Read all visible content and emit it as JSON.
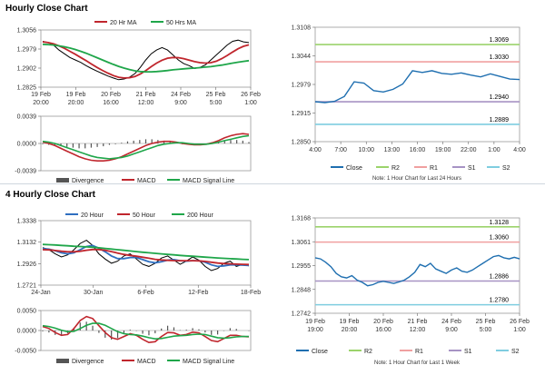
{
  "sections": [
    {
      "title": "Hourly Close Chart"
    },
    {
      "title": "4 Hourly Close Chart"
    }
  ],
  "colors": {
    "close": "#000000",
    "ma_red": "#c0262d",
    "ma_green": "#1fa64a",
    "ma_blue": "#2f6fc0",
    "macd_red": "#c0262d",
    "macd_green": "#1fa64a",
    "hist": "#555555",
    "pivot_close": "#1f6fb0",
    "r2": "#9bd36b",
    "r1": "#f0a0a0",
    "s1": "#a793c4",
    "s2": "#7fcde0"
  },
  "chart_data": [
    {
      "id": "hourly-price",
      "type": "line",
      "legend": [
        "20 Hr MA",
        "50 Hrs MA"
      ],
      "x_ticks": [
        [
          "19 Feb",
          "20:00"
        ],
        [
          "19 Feb",
          "20:00"
        ],
        [
          "20 Feb",
          "16:00"
        ],
        [
          "21 Feb",
          "12:00"
        ],
        [
          "24 Feb",
          "9:00"
        ],
        [
          "25 Feb",
          "5:00"
        ],
        [
          "26 Feb",
          "1:00"
        ]
      ],
      "y_ticks": [
        "1.3056",
        "1.2979",
        "1.2902",
        "1.2825"
      ],
      "ylim": [
        1.2825,
        1.3056
      ],
      "series": [
        {
          "role": "close",
          "values": [
            1.301,
            1.3005,
            1.2995,
            1.2975,
            1.296,
            1.2945,
            1.2935,
            1.2925,
            1.2912,
            1.29,
            1.289,
            1.288,
            1.287,
            1.2862,
            1.2855,
            1.2858,
            1.2865,
            1.288,
            1.2905,
            1.2935,
            1.296,
            1.2975,
            1.2985,
            1.2975,
            1.2955,
            1.2935,
            1.292,
            1.2912,
            1.29,
            1.2905,
            1.2915,
            1.2935,
            1.2955,
            1.2975,
            1.2995,
            1.301,
            1.3015,
            1.3008,
            1.3005
          ]
        },
        {
          "name": "20 Hr MA",
          "role": "ma1",
          "values": [
            1.3008,
            1.3005,
            1.3,
            1.2992,
            1.2982,
            1.297,
            1.2958,
            1.2945,
            1.2932,
            1.2918,
            1.2905,
            1.2893,
            1.2882,
            1.2872,
            1.2865,
            1.2862,
            1.2863,
            1.2868,
            1.2878,
            1.2892,
            1.2908,
            1.2922,
            1.2934,
            1.2942,
            1.2945,
            1.2944,
            1.294,
            1.2934,
            1.2928,
            1.2924,
            1.2922,
            1.2924,
            1.293,
            1.294,
            1.2953,
            1.2967,
            1.298,
            1.299,
            1.2996
          ]
        },
        {
          "name": "50 Hrs MA",
          "role": "ma2",
          "values": [
            1.2998,
            1.2997,
            1.2995,
            1.2992,
            1.2988,
            1.2983,
            1.2977,
            1.297,
            1.2962,
            1.2953,
            1.2944,
            1.2935,
            1.2926,
            1.2917,
            1.2909,
            1.2902,
            1.2896,
            1.2891,
            1.2888,
            1.2887,
            1.2887,
            1.2888,
            1.289,
            1.2892,
            1.2895,
            1.2897,
            1.2899,
            1.2901,
            1.2902,
            1.2904,
            1.2906,
            1.2908,
            1.2911,
            1.2914,
            1.2918,
            1.2922,
            1.2926,
            1.2929,
            1.2932
          ]
        }
      ]
    },
    {
      "id": "hourly-macd",
      "type": "line",
      "legend": [
        "Divergence",
        "MACD",
        "MACD Signal Line"
      ],
      "y_ticks": [
        "0.0039",
        "0.0000",
        "-0.0039"
      ],
      "ylim": [
        -0.0039,
        0.0039
      ],
      "series": [
        {
          "name": "MACD",
          "role": "macd",
          "values": [
            0.0002,
            0.0,
            -0.0003,
            -0.0007,
            -0.0011,
            -0.0015,
            -0.0019,
            -0.0022,
            -0.0024,
            -0.0025,
            -0.0025,
            -0.0024,
            -0.0022,
            -0.0019,
            -0.0015,
            -0.0011,
            -0.0007,
            -0.0003,
            0.0,
            0.0002,
            0.0003,
            0.0003,
            0.0002,
            0.0,
            -0.0001,
            -0.0002,
            -0.0002,
            -0.0001,
            0.0001,
            0.0004,
            0.0008,
            0.0011,
            0.0013,
            0.0014,
            0.0013
          ]
        },
        {
          "name": "MACD Signal Line",
          "role": "signal",
          "values": [
            0.0003,
            0.0002,
            0.0,
            -0.0003,
            -0.0006,
            -0.0009,
            -0.0012,
            -0.0015,
            -0.0018,
            -0.002,
            -0.0021,
            -0.0022,
            -0.0021,
            -0.002,
            -0.0018,
            -0.0015,
            -0.0012,
            -0.0009,
            -0.0006,
            -0.0003,
            -0.0001,
            0.0,
            0.0001,
            0.0001,
            0.0,
            -0.0001,
            -0.0001,
            -0.0001,
            0.0,
            0.0002,
            0.0004,
            0.0006,
            0.0008,
            0.001,
            0.0011
          ]
        },
        {
          "name": "Divergence",
          "role": "hist",
          "values": [
            -0.0001,
            -0.0002,
            -0.0003,
            -0.0004,
            -0.0005,
            -0.0006,
            -0.0007,
            -0.0007,
            -0.0006,
            -0.0005,
            -0.0004,
            -0.0002,
            -0.0001,
            0.0001,
            0.0003,
            0.0004,
            0.0005,
            0.0006,
            0.0006,
            0.0005,
            0.0004,
            0.0003,
            0.0001,
            -0.0001,
            -0.0001,
            -0.0001,
            -0.0001,
            0.0,
            0.0001,
            0.0002,
            0.0004,
            0.0005,
            0.0005,
            0.0004,
            0.0002
          ]
        }
      ]
    },
    {
      "id": "hourly-pivot",
      "type": "line",
      "legend": [
        "Close",
        "R2",
        "R1",
        "S1",
        "S2"
      ],
      "x_ticks": [
        "4:00",
        "7:00",
        "10:00",
        "13:00",
        "16:00",
        "19:00",
        "22:00",
        "1:00",
        "4:00"
      ],
      "y_ticks": [
        "1.3108",
        "1.3044",
        "1.2979",
        "1.2915",
        "1.2850"
      ],
      "ylim": [
        1.285,
        1.3108
      ],
      "levels": {
        "R2": 1.3069,
        "R1": 1.303,
        "S1": 1.294,
        "S2": 1.2889
      },
      "level_labels": {
        "R2": "1.3069",
        "R1": "1.3030",
        "S1": "1.2940",
        "S2": "1.2889"
      },
      "note": "Note: 1 Hour Chart for Last 24 Hours",
      "series": [
        {
          "name": "Close",
          "role": "close",
          "values": [
            1.294,
            1.2938,
            1.2941,
            1.2952,
            1.2985,
            1.2982,
            1.2965,
            1.2962,
            1.2968,
            1.298,
            1.301,
            1.3006,
            1.301,
            1.3004,
            1.3002,
            1.3005,
            1.3,
            1.2996,
            1.3003,
            1.2997,
            1.2991,
            1.299
          ]
        }
      ]
    },
    {
      "id": "4hourly-price",
      "type": "line",
      "legend": [
        "20 Hour",
        "50 Hour",
        "200 Hour"
      ],
      "x_ticks": [
        "24-Jan",
        "30-Jan",
        "6-Feb",
        "12-Feb",
        "18-Feb"
      ],
      "y_ticks": [
        "1.3338",
        "1.3132",
        "1.2926",
        "1.2721"
      ],
      "ylim": [
        1.2721,
        1.3338
      ],
      "series": [
        {
          "role": "close",
          "values": [
            1.308,
            1.306,
            1.302,
            1.299,
            1.301,
            1.306,
            1.312,
            1.315,
            1.31,
            1.302,
            1.297,
            1.293,
            1.295,
            1.3,
            1.302,
            1.297,
            1.292,
            1.29,
            1.293,
            1.298,
            1.3,
            1.296,
            1.292,
            1.295,
            1.299,
            1.296,
            1.29,
            1.286,
            1.288,
            1.293,
            1.295,
            1.29,
            1.292,
            1.2905
          ]
        },
        {
          "name": "20 Hour",
          "role": "ma1",
          "values": [
            1.307,
            1.3065,
            1.305,
            1.303,
            1.302,
            1.303,
            1.306,
            1.309,
            1.31,
            1.3075,
            1.304,
            1.3,
            1.2975,
            1.2975,
            1.2985,
            1.2985,
            1.2965,
            1.2945,
            1.2935,
            1.2945,
            1.296,
            1.2965,
            1.2955,
            1.295,
            1.2955,
            1.2955,
            1.294,
            1.2915,
            1.29,
            1.2905,
            1.2915,
            1.2915,
            1.2912,
            1.291
          ]
        },
        {
          "name": "50 Hour",
          "role": "ma2",
          "values": [
            1.306,
            1.3058,
            1.3052,
            1.3045,
            1.304,
            1.304,
            1.3045,
            1.3055,
            1.3062,
            1.3062,
            1.3055,
            1.3042,
            1.3028,
            1.3015,
            1.3005,
            1.2997,
            1.2988,
            1.2978,
            1.2968,
            1.2962,
            1.2958,
            1.2956,
            1.2955,
            1.2955,
            1.2955,
            1.2953,
            1.2948,
            1.294,
            1.2932,
            1.2927,
            1.2924,
            1.2922,
            1.292,
            1.2918
          ]
        },
        {
          "name": "200 Hour",
          "role": "ma3",
          "values": [
            1.311,
            1.3108,
            1.3105,
            1.3101,
            1.3097,
            1.3093,
            1.309,
            1.3087,
            1.3083,
            1.3078,
            1.3072,
            1.3066,
            1.306,
            1.3054,
            1.3048,
            1.3042,
            1.3036,
            1.303,
            1.3025,
            1.302,
            1.3015,
            1.301,
            1.3005,
            1.3001,
            1.2997,
            1.2993,
            1.2989,
            1.2985,
            1.2981,
            1.2977,
            1.2974,
            1.2971,
            1.2968,
            1.2965
          ]
        }
      ]
    },
    {
      "id": "4hourly-macd",
      "type": "line",
      "legend": [
        "Divergence",
        "MACD",
        "MACD Signal Line"
      ],
      "y_ticks": [
        "0.0050",
        "0.0000",
        "-0.0050"
      ],
      "ylim": [
        -0.005,
        0.005
      ],
      "series": [
        {
          "name": "MACD",
          "role": "macd",
          "values": [
            0.001,
            0.0005,
            -0.0005,
            -0.0012,
            -0.001,
            0.0005,
            0.0025,
            0.0035,
            0.003,
            0.0012,
            -0.0005,
            -0.0018,
            -0.0022,
            -0.0015,
            -0.0008,
            -0.0012,
            -0.0022,
            -0.003,
            -0.0028,
            -0.0015,
            -0.0005,
            -0.0006,
            -0.0012,
            -0.001,
            -0.0004,
            -0.0006,
            -0.0015,
            -0.0025,
            -0.0028,
            -0.002,
            -0.0012,
            -0.0012,
            -0.0015,
            -0.0016
          ]
        },
        {
          "name": "MACD Signal Line",
          "role": "signal",
          "values": [
            0.0012,
            0.001,
            0.0006,
            0.0001,
            -0.0003,
            -0.0002,
            0.0005,
            0.0013,
            0.0018,
            0.0018,
            0.0013,
            0.0005,
            -0.0003,
            -0.0008,
            -0.001,
            -0.0011,
            -0.0014,
            -0.0018,
            -0.0021,
            -0.002,
            -0.0017,
            -0.0014,
            -0.0013,
            -0.0012,
            -0.001,
            -0.0009,
            -0.001,
            -0.0014,
            -0.0018,
            -0.0019,
            -0.0018,
            -0.0016,
            -0.0015,
            -0.0015
          ]
        },
        {
          "name": "Divergence",
          "role": "hist",
          "values": [
            -0.0002,
            -0.0005,
            -0.0011,
            -0.0013,
            -0.0007,
            0.0007,
            0.002,
            0.0022,
            0.0012,
            -0.0006,
            -0.0018,
            -0.0023,
            -0.0019,
            -0.0007,
            0.0002,
            -0.0001,
            -0.0008,
            -0.0012,
            -0.0007,
            0.0005,
            0.0012,
            0.0008,
            0.0001,
            0.0002,
            0.0006,
            0.0003,
            -0.0005,
            -0.0011,
            -0.001,
            -0.0001,
            0.0006,
            0.0004,
            0.0,
            -0.0001
          ]
        }
      ]
    },
    {
      "id": "4hourly-pivot",
      "type": "line",
      "legend": [
        "Close",
        "R2",
        "R1",
        "S1",
        "S2"
      ],
      "x_ticks": [
        [
          "19 Feb",
          "19:00"
        ],
        [
          "19 Feb",
          "20:00"
        ],
        [
          "20 Feb",
          "16:00"
        ],
        [
          "21 Feb",
          "12:00"
        ],
        [
          "24 Feb",
          "9:00"
        ],
        [
          "25 Feb",
          "5:00"
        ],
        [
          "26 Feb",
          "1:00"
        ]
      ],
      "y_ticks": [
        "1.3168",
        "1.3061",
        "1.2955",
        "1.2848",
        "1.2742"
      ],
      "ylim": [
        1.2742,
        1.3168
      ],
      "levels": {
        "R2": 1.3128,
        "R1": 1.306,
        "S1": 1.2886,
        "S2": 1.278
      },
      "level_labels": {
        "R2": "1.3128",
        "R1": "1.3060",
        "S1": "1.2886",
        "S2": "1.2780"
      },
      "note": "Note: 1 Hour Chart for Last 1 Week",
      "series": [
        {
          "name": "Close",
          "role": "close",
          "values": [
            1.299,
            1.2985,
            1.297,
            1.295,
            1.292,
            1.2905,
            1.29,
            1.291,
            1.289,
            1.288,
            1.2865,
            1.287,
            1.288,
            1.2885,
            1.288,
            1.2875,
            1.2882,
            1.289,
            1.2905,
            1.2925,
            1.296,
            1.295,
            1.2965,
            1.294,
            1.293,
            1.292,
            1.2935,
            1.2945,
            1.293,
            1.2925,
            1.2935,
            1.295,
            1.2965,
            1.298,
            1.2995,
            1.3,
            1.299,
            1.2985,
            1.2992,
            1.2985
          ]
        }
      ]
    }
  ]
}
